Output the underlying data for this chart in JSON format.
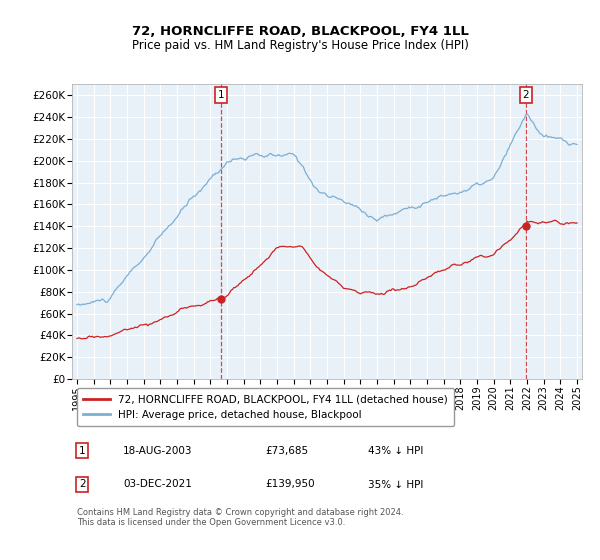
{
  "title": "72, HORNCLIFFE ROAD, BLACKPOOL, FY4 1LL",
  "subtitle": "Price paid vs. HM Land Registry's House Price Index (HPI)",
  "ylabel_ticks": [
    "£0",
    "£20K",
    "£40K",
    "£60K",
    "£80K",
    "£100K",
    "£120K",
    "£140K",
    "£160K",
    "£180K",
    "£200K",
    "£220K",
    "£240K",
    "£260K"
  ],
  "ytick_values": [
    0,
    20000,
    40000,
    60000,
    80000,
    100000,
    120000,
    140000,
    160000,
    180000,
    200000,
    220000,
    240000,
    260000
  ],
  "ylim": [
    0,
    270000
  ],
  "hpi_color": "#7bafd4",
  "price_color": "#cc2222",
  "marker1_price": 73685,
  "marker2_price": 139950,
  "sale1_year": 2003.62,
  "sale2_year": 2021.92,
  "legend_line1": "72, HORNCLIFFE ROAD, BLACKPOOL, FY4 1LL (detached house)",
  "legend_line2": "HPI: Average price, detached house, Blackpool",
  "annotation1_date": "18-AUG-2003",
  "annotation1_price": "£73,685",
  "annotation1_pct": "43% ↓ HPI",
  "annotation2_date": "03-DEC-2021",
  "annotation2_price": "£139,950",
  "annotation2_pct": "35% ↓ HPI",
  "footer": "Contains HM Land Registry data © Crown copyright and database right 2024.\nThis data is licensed under the Open Government Licence v3.0.",
  "background_color": "#ffffff",
  "plot_bg_color": "#e8f0f8",
  "grid_color": "#ffffff"
}
